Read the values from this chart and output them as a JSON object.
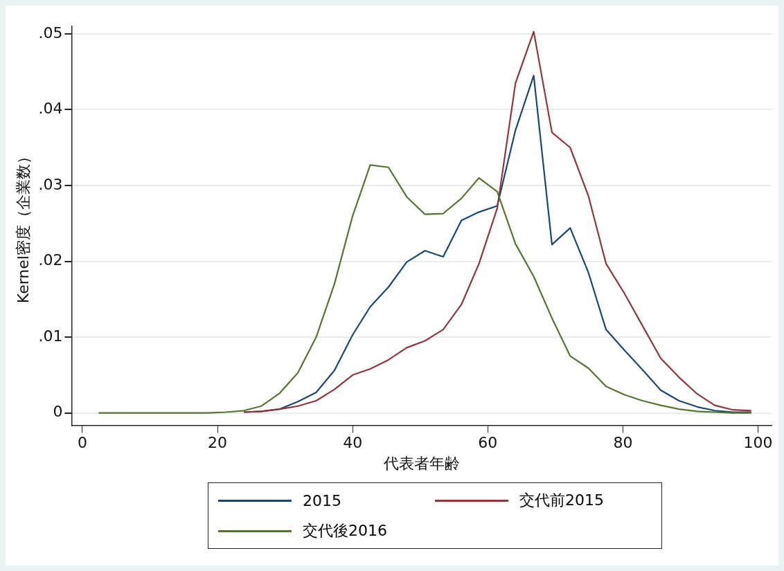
{
  "chart_data": {
    "type": "line",
    "xlabel": "代表者年齢",
    "ylabel": "Kernel密度（企業数）",
    "x": [
      2.4,
      5.1,
      7.8,
      10.4,
      13.1,
      15.8,
      18.5,
      21.2,
      23.9,
      26.5,
      29.2,
      31.9,
      34.6,
      37.3,
      40.0,
      42.6,
      45.3,
      48.0,
      50.7,
      53.4,
      56.1,
      58.7,
      61.4,
      64.1,
      66.8,
      69.5,
      72.2,
      74.9,
      77.5,
      80.2,
      82.9,
      85.6,
      88.3,
      91.0,
      93.6,
      96.3,
      99.0
    ],
    "series": [
      {
        "name": "2015",
        "color": "#1a476f",
        "values": [
          null,
          null,
          null,
          null,
          null,
          null,
          null,
          null,
          0.0001,
          0.0002,
          0.0005,
          0.0015,
          0.0027,
          0.0056,
          0.0103,
          0.014,
          0.0166,
          0.0199,
          0.0214,
          0.0206,
          0.0254,
          0.0265,
          0.0273,
          0.0373,
          0.0445,
          0.0222,
          0.0244,
          0.0185,
          0.011,
          0.0083,
          0.0057,
          0.003,
          0.0016,
          0.0008,
          0.0003,
          0.0001,
          0.0001
        ]
      },
      {
        "name": "交代前2015",
        "color": "#90353b",
        "values": [
          null,
          null,
          null,
          null,
          null,
          null,
          null,
          null,
          0.0001,
          0.0002,
          0.0005,
          0.0009,
          0.0016,
          0.0031,
          0.005,
          0.0058,
          0.007,
          0.0086,
          0.0095,
          0.011,
          0.0143,
          0.0197,
          0.027,
          0.0435,
          0.0503,
          0.037,
          0.035,
          0.0286,
          0.0197,
          0.0158,
          0.0115,
          0.0072,
          0.0047,
          0.0025,
          0.001,
          0.0004,
          0.0003
        ]
      },
      {
        "name": "交代後2016",
        "color": "#55752f",
        "values": [
          0,
          0,
          0,
          0,
          0,
          0,
          0,
          0.0001,
          0.0003,
          0.0009,
          0.0026,
          0.0053,
          0.01,
          0.017,
          0.026,
          0.0327,
          0.0324,
          0.0285,
          0.0262,
          0.0263,
          0.0283,
          0.031,
          0.0292,
          0.0223,
          0.018,
          0.0125,
          0.0075,
          0.0059,
          0.0035,
          0.0024,
          0.0016,
          0.001,
          0.0005,
          0.0002,
          0.0001,
          0,
          0
        ]
      }
    ],
    "xlim": [
      -1.6,
      102
    ],
    "xticks": [
      0,
      20,
      40,
      60,
      80,
      100
    ],
    "ylim": [
      -0.0017,
      0.051
    ],
    "yticks": [
      0,
      {
        "value": 0.01,
        "label": ".01"
      },
      {
        "value": 0.02,
        "label": ".02"
      },
      {
        "value": 0.03,
        "label": ".03"
      },
      {
        "value": 0.04,
        "label": ".04"
      },
      {
        "value": 0.05,
        "label": ".05"
      }
    ],
    "grid": "y",
    "legend": "bottom",
    "line_style": "solid",
    "marker": "none"
  }
}
